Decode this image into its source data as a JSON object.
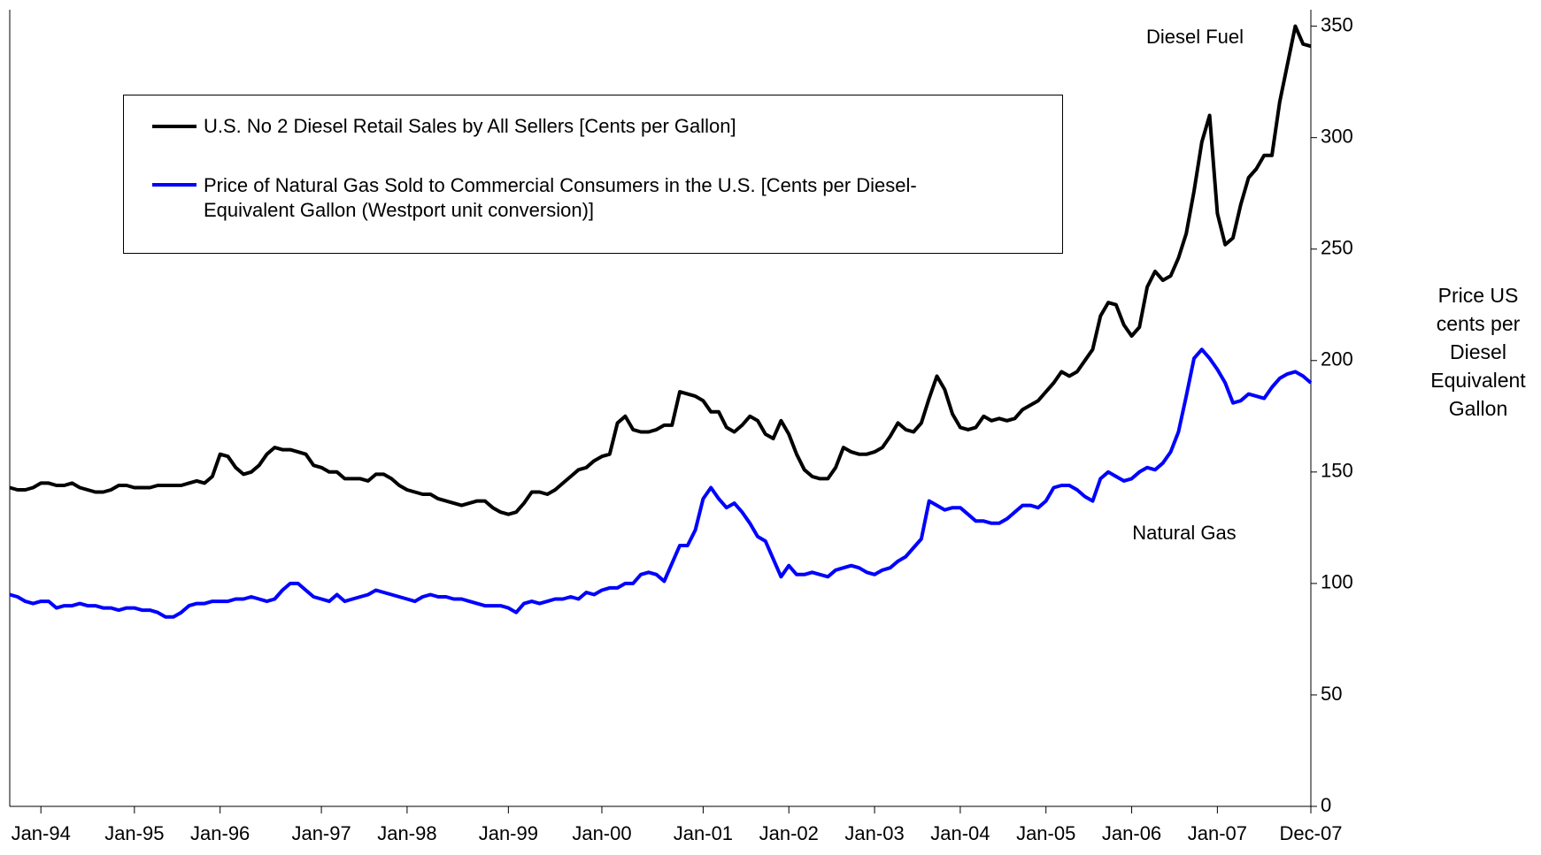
{
  "chart_data": {
    "type": "line",
    "y_label": "Price US cents per Diesel Equivalent Gallon",
    "annotations": [
      "Diesel Fuel",
      "Natural Gas"
    ],
    "categories": [
      null,
      null,
      null,
      null,
      "Jan-94",
      null,
      null,
      null,
      null,
      null,
      null,
      null,
      null,
      null,
      null,
      null,
      "Jan-95",
      null,
      null,
      null,
      null,
      null,
      null,
      null,
      null,
      null,
      null,
      "Jan-96",
      null,
      null,
      null,
      null,
      null,
      null,
      null,
      null,
      null,
      null,
      null,
      null,
      "Jan-97",
      null,
      null,
      null,
      null,
      null,
      null,
      null,
      null,
      null,
      null,
      "Jan-98",
      null,
      null,
      null,
      null,
      null,
      null,
      null,
      null,
      null,
      null,
      null,
      null,
      "Jan-99",
      null,
      null,
      null,
      null,
      null,
      null,
      null,
      null,
      null,
      null,
      null,
      "Jan-00",
      null,
      null,
      null,
      null,
      null,
      null,
      null,
      null,
      null,
      null,
      null,
      null,
      "Jan-01",
      null,
      null,
      null,
      null,
      null,
      null,
      null,
      null,
      null,
      null,
      "Jan-02",
      null,
      null,
      null,
      null,
      null,
      null,
      null,
      null,
      null,
      null,
      "Jan-03",
      null,
      null,
      null,
      null,
      null,
      null,
      null,
      null,
      null,
      null,
      "Jan-04",
      null,
      null,
      null,
      null,
      null,
      null,
      null,
      null,
      null,
      null,
      "Jan-05",
      null,
      null,
      null,
      null,
      null,
      null,
      null,
      null,
      null,
      null,
      "Jan-06",
      null,
      null,
      null,
      null,
      null,
      null,
      null,
      null,
      null,
      null,
      "Jan-07",
      null,
      null,
      null,
      null,
      null,
      null,
      null,
      null,
      null,
      null,
      null,
      "Dec-07"
    ],
    "series": [
      {
        "name": "U.S. No 2 Diesel Retail Sales by All Sellers [Cents per Gallon]",
        "color": "#000000",
        "values": [
          143,
          142,
          142,
          143,
          145,
          145,
          144,
          144,
          145,
          143,
          142,
          141,
          141,
          142,
          144,
          144,
          143,
          143,
          143,
          144,
          144,
          144,
          144,
          145,
          146,
          145,
          148,
          158,
          157,
          152,
          149,
          150,
          153,
          158,
          161,
          160,
          160,
          159,
          158,
          153,
          152,
          150,
          150,
          147,
          147,
          147,
          146,
          149,
          149,
          147,
          144,
          142,
          141,
          140,
          140,
          138,
          137,
          136,
          135,
          136,
          137,
          137,
          134,
          132,
          131,
          132,
          136,
          141,
          141,
          140,
          142,
          145,
          148,
          151,
          152,
          155,
          157,
          158,
          172,
          175,
          169,
          168,
          168,
          169,
          171,
          171,
          186,
          185,
          184,
          182,
          177,
          177,
          170,
          168,
          171,
          175,
          173,
          167,
          165,
          173,
          167,
          158,
          151,
          148,
          147,
          147,
          152,
          161,
          159,
          158,
          158,
          159,
          161,
          166,
          172,
          169,
          168,
          172,
          183,
          193,
          187,
          176,
          170,
          169,
          170,
          175,
          173,
          174,
          173,
          174,
          178,
          180,
          182,
          186,
          190,
          195,
          193,
          195,
          200,
          205,
          220,
          226,
          225,
          216,
          211,
          215,
          233,
          240,
          236,
          238,
          246,
          257,
          276,
          298,
          310,
          266,
          252,
          255,
          270,
          282,
          286,
          292,
          292,
          316,
          333,
          350,
          342,
          341
        ]
      },
      {
        "name": "Price of Natural Gas Sold to Commercial Consumers in the U.S. [Cents per Diesel-Equivalent Gallon (Westport unit conversion)]",
        "color": "#0000ff",
        "values": [
          95,
          94,
          92,
          91,
          92,
          92,
          89,
          90,
          90,
          91,
          90,
          90,
          89,
          89,
          88,
          89,
          89,
          88,
          88,
          87,
          85,
          85,
          87,
          90,
          91,
          91,
          92,
          92,
          92,
          93,
          93,
          94,
          93,
          92,
          93,
          97,
          100,
          100,
          97,
          94,
          93,
          92,
          95,
          92,
          93,
          94,
          95,
          97,
          96,
          95,
          94,
          93,
          92,
          94,
          95,
          94,
          94,
          93,
          93,
          92,
          91,
          90,
          90,
          90,
          89,
          87,
          91,
          92,
          91,
          92,
          93,
          93,
          94,
          93,
          96,
          95,
          97,
          98,
          98,
          100,
          100,
          104,
          105,
          104,
          101,
          109,
          117,
          117,
          124,
          138,
          143,
          138,
          134,
          136,
          132,
          127,
          121,
          119,
          111,
          103,
          108,
          104,
          104,
          105,
          104,
          103,
          106,
          107,
          108,
          107,
          105,
          104,
          106,
          107,
          110,
          112,
          116,
          120,
          137,
          135,
          133,
          134,
          134,
          131,
          128,
          128,
          127,
          127,
          129,
          132,
          135,
          135,
          134,
          137,
          143,
          144,
          144,
          142,
          139,
          137,
          147,
          150,
          148,
          146,
          147,
          150,
          152,
          151,
          154,
          159,
          168,
          184,
          201,
          205,
          201,
          196,
          190,
          181,
          182,
          185,
          184,
          183,
          188,
          192,
          194,
          195,
          193,
          190
        ]
      }
    ],
    "ylim": [
      0,
      355
    ],
    "yticks": [
      0,
      50,
      100,
      150,
      200,
      250,
      300,
      350
    ]
  }
}
